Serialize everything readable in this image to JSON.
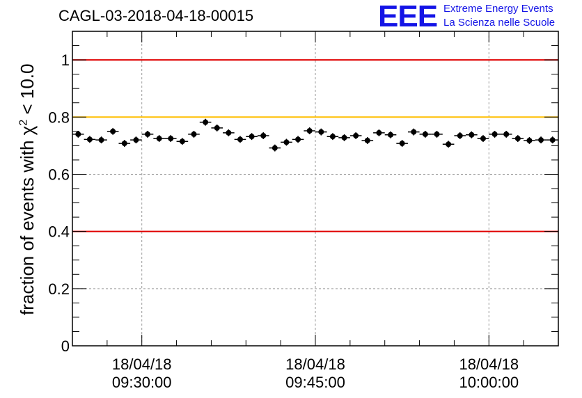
{
  "title": "CAGL-03-2018-04-18-00015",
  "logo": {
    "mark": "EEE",
    "line1": "Extreme Energy Events",
    "line2": "La Scienza nelle Scuole",
    "color": "#1414e6"
  },
  "chart_data": {
    "type": "scatter",
    "title": "CAGL-03-2018-04-18-00015",
    "ylabel_prefix": "fraction of events with χ",
    "ylabel_sup": "2",
    "ylabel_suffix": " < 10.0",
    "xlabel": "",
    "ylim": [
      0,
      1.1
    ],
    "xlim_minutes_after_09_00": [
      24,
      66
    ],
    "yticks": [
      "0",
      "0.2",
      "0.4",
      "0.6",
      "0.8",
      "1"
    ],
    "xticks": [
      {
        "minutes": 30,
        "date": "18/04/18",
        "time": "09:30:00"
      },
      {
        "minutes": 45,
        "date": "18/04/18",
        "time": "09:45:00"
      },
      {
        "minutes": 60,
        "date": "18/04/18",
        "time": "10:00:00"
      }
    ],
    "reference_lines": [
      {
        "y": 1.0,
        "color": "#e00000"
      },
      {
        "y": 0.8,
        "color": "#ffbf00"
      },
      {
        "y": 0.4,
        "color": "#e00000"
      }
    ],
    "grid": true,
    "series": [
      {
        "marker_color": "#000000",
        "x_minutes_after_09_00": [
          24.5,
          25.5,
          26.5,
          27.5,
          28.5,
          29.5,
          30.5,
          31.5,
          32.5,
          33.5,
          34.5,
          35.5,
          36.5,
          37.5,
          38.5,
          39.5,
          40.5,
          41.5,
          42.5,
          43.5,
          44.5,
          45.5,
          46.5,
          47.5,
          48.5,
          49.5,
          50.5,
          51.5,
          52.5,
          53.5,
          54.5,
          55.5,
          56.5,
          57.5,
          58.5,
          59.5,
          60.5,
          61.5,
          62.5,
          63.5,
          64.5,
          65.5
        ],
        "values": [
          0.74,
          0.722,
          0.72,
          0.75,
          0.708,
          0.72,
          0.74,
          0.725,
          0.725,
          0.715,
          0.74,
          0.782,
          0.762,
          0.745,
          0.722,
          0.732,
          0.735,
          0.692,
          0.712,
          0.722,
          0.752,
          0.748,
          0.732,
          0.728,
          0.735,
          0.718,
          0.745,
          0.738,
          0.708,
          0.748,
          0.74,
          0.74,
          0.705,
          0.735,
          0.738,
          0.725,
          0.74,
          0.74,
          0.725,
          0.718,
          0.72,
          0.72
        ],
        "errors": [
          0.012,
          0.012,
          0.012,
          0.012,
          0.012,
          0.012,
          0.012,
          0.012,
          0.012,
          0.012,
          0.012,
          0.012,
          0.012,
          0.012,
          0.012,
          0.012,
          0.012,
          0.012,
          0.012,
          0.012,
          0.012,
          0.012,
          0.012,
          0.012,
          0.012,
          0.012,
          0.012,
          0.012,
          0.012,
          0.012,
          0.012,
          0.012,
          0.012,
          0.012,
          0.012,
          0.012,
          0.012,
          0.012,
          0.012,
          0.012,
          0.012,
          0.012
        ]
      }
    ]
  }
}
